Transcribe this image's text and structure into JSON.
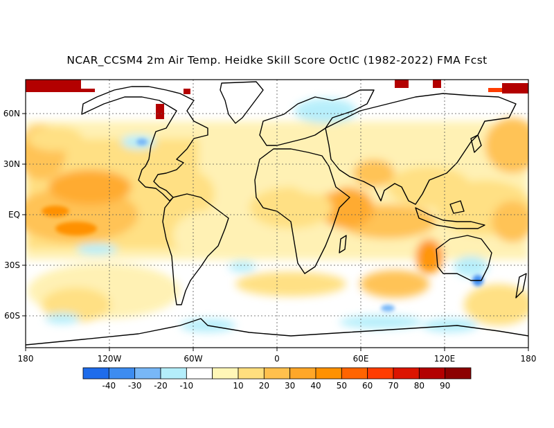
{
  "title": "NCAR_CCSM4 2m Air Temp. Heidke Skill Score OctIC (1982-2022) FMA Fcst",
  "map": {
    "lon_ticks": [
      "180",
      "120W",
      "60W",
      "0",
      "60E",
      "120E",
      "180"
    ],
    "lat_ticks": [
      "60N",
      "30N",
      "EQ",
      "30S",
      "60S"
    ],
    "gridlines": "dotted"
  },
  "colorbar": {
    "colors": [
      "#1e6ceb",
      "#3d8cf0",
      "#78b7f7",
      "#b4eefb",
      "#ffffff",
      "#fff7b7",
      "#ffdf7e",
      "#ffc04d",
      "#ffa728",
      "#ff9100",
      "#ff6400",
      "#ff3c00",
      "#dc1400",
      "#b30000",
      "#8c0000"
    ],
    "labels": [
      "-40",
      "-30",
      "-20",
      "-10",
      "10",
      "20",
      "30",
      "40",
      "50",
      "60",
      "70",
      "80",
      "90"
    ]
  }
}
